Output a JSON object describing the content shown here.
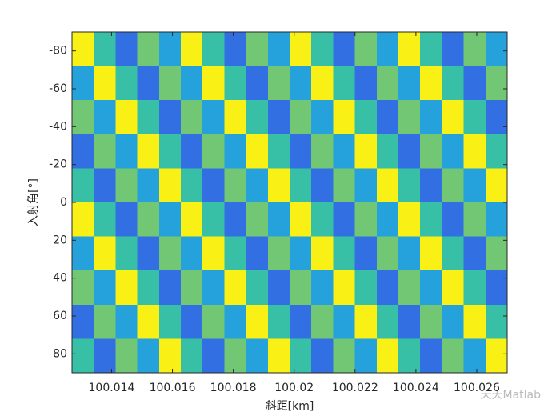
{
  "chart_data": {
    "type": "heatmap",
    "xlabel": "斜距[km]",
    "ylabel": "入射角[°]",
    "watermark": "天天Matlab",
    "xlim": [
      100.0127,
      100.027
    ],
    "ylim": [
      -90,
      90
    ],
    "y_reversed": true,
    "xticks": [
      100.014,
      100.016,
      100.018,
      100.02,
      100.022,
      100.024,
      100.026
    ],
    "yticks": [
      -80,
      -60,
      -40,
      -20,
      0,
      20,
      40,
      60,
      80
    ],
    "colormap": [
      "#3e26a8",
      "#2e87f7",
      "#1bbcc0",
      "#8dcb5b",
      "#f9d02a",
      "#f9fb0e"
    ],
    "z": [
      [
        0.95,
        0.45,
        0.15,
        0.55,
        0.3,
        0.95,
        0.45,
        0.15,
        0.55,
        0.3,
        0.95,
        0.45,
        0.15,
        0.55,
        0.3,
        0.95,
        0.45,
        0.15,
        0.55,
        0.3
      ],
      [
        0.3,
        0.95,
        0.45,
        0.15,
        0.55,
        0.3,
        0.95,
        0.45,
        0.15,
        0.55,
        0.3,
        0.95,
        0.45,
        0.15,
        0.55,
        0.3,
        0.95,
        0.45,
        0.15,
        0.55
      ],
      [
        0.55,
        0.3,
        0.95,
        0.45,
        0.15,
        0.55,
        0.3,
        0.95,
        0.45,
        0.15,
        0.55,
        0.3,
        0.95,
        0.45,
        0.15,
        0.55,
        0.3,
        0.95,
        0.45,
        0.15
      ],
      [
        0.15,
        0.55,
        0.3,
        0.95,
        0.45,
        0.15,
        0.55,
        0.3,
        0.95,
        0.45,
        0.15,
        0.55,
        0.3,
        0.95,
        0.45,
        0.15,
        0.55,
        0.3,
        0.95,
        0.45
      ],
      [
        0.45,
        0.15,
        0.55,
        0.3,
        0.95,
        0.45,
        0.15,
        0.55,
        0.3,
        0.95,
        0.45,
        0.15,
        0.55,
        0.3,
        0.95,
        0.45,
        0.15,
        0.55,
        0.3,
        0.95
      ],
      [
        0.95,
        0.45,
        0.15,
        0.55,
        0.3,
        0.95,
        0.45,
        0.15,
        0.55,
        0.3,
        0.95,
        0.45,
        0.15,
        0.55,
        0.3,
        0.95,
        0.45,
        0.15,
        0.55,
        0.3
      ],
      [
        0.3,
        0.95,
        0.45,
        0.15,
        0.55,
        0.3,
        0.95,
        0.45,
        0.15,
        0.55,
        0.3,
        0.95,
        0.45,
        0.15,
        0.55,
        0.3,
        0.95,
        0.45,
        0.15,
        0.55
      ],
      [
        0.55,
        0.3,
        0.95,
        0.45,
        0.15,
        0.55,
        0.3,
        0.95,
        0.45,
        0.15,
        0.55,
        0.3,
        0.95,
        0.45,
        0.15,
        0.55,
        0.3,
        0.95,
        0.45,
        0.15
      ],
      [
        0.15,
        0.55,
        0.3,
        0.95,
        0.45,
        0.15,
        0.55,
        0.3,
        0.95,
        0.45,
        0.15,
        0.55,
        0.3,
        0.95,
        0.45,
        0.15,
        0.55,
        0.3,
        0.95,
        0.45
      ],
      [
        0.45,
        0.15,
        0.55,
        0.3,
        0.95,
        0.45,
        0.15,
        0.55,
        0.3,
        0.95,
        0.45,
        0.15,
        0.55,
        0.3,
        0.95,
        0.45,
        0.15,
        0.55,
        0.3,
        0.95
      ]
    ]
  }
}
